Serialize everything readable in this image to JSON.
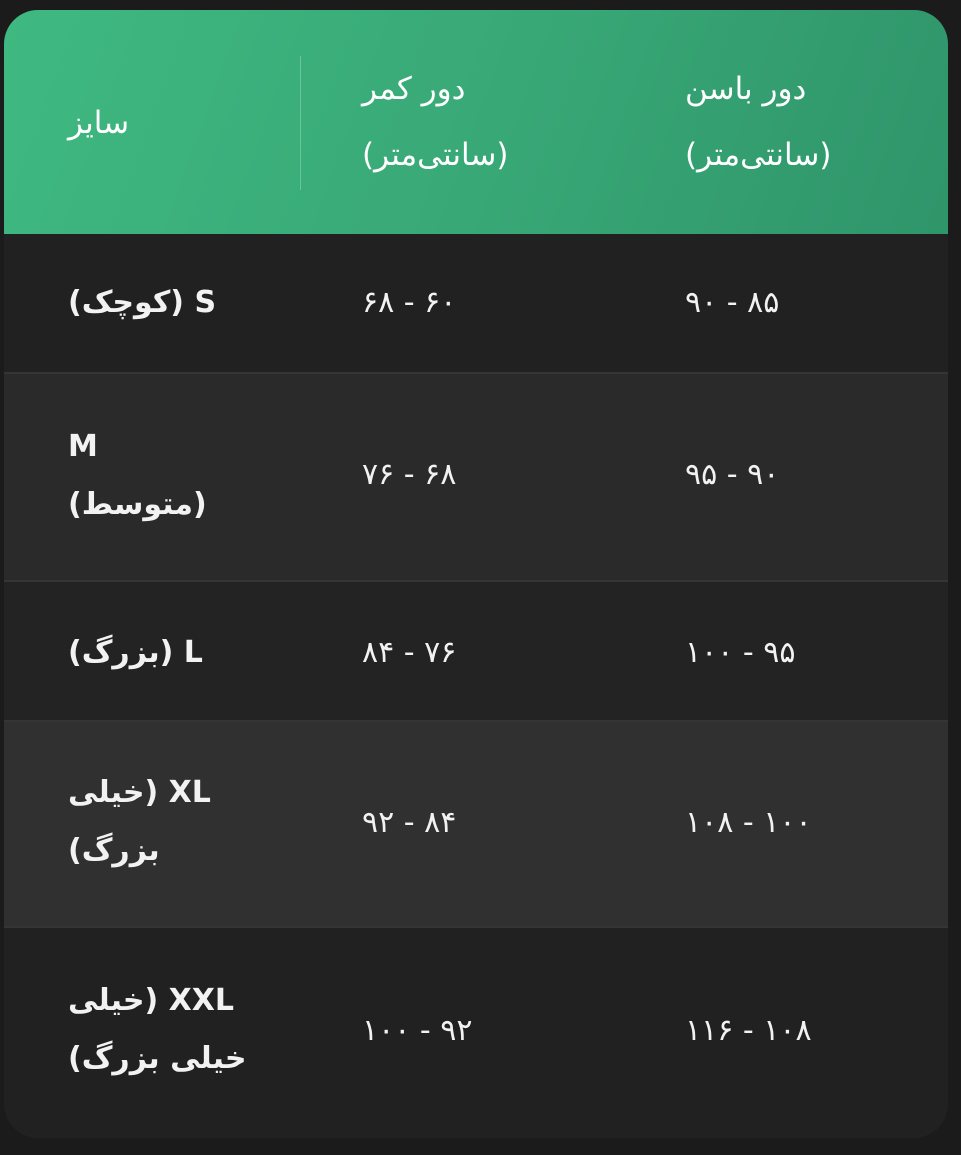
{
  "header": {
    "size": "سایز",
    "waist_line1": "دور کمر",
    "waist_line2": "(سانتی‌متر)",
    "hip_line1": "دور باسن",
    "hip_line2": "(سانتی‌متر)"
  },
  "rows": [
    {
      "size": "S (کوچک)",
      "waist": "۶۰ - ۶۸",
      "hip": "۸۵ - ۹۰"
    },
    {
      "size": "M (متوسط)",
      "waist": "۶۸ - ۷۶",
      "hip": "۹۰ - ۹۵"
    },
    {
      "size": "L (بزرگ)",
      "waist": "۷۶ - ۸۴",
      "hip": "۹۵ - ۱۰۰"
    },
    {
      "size": "XL (خیلی بزرگ)",
      "waist": "۸۴ - ۹۲",
      "hip": "۱۰۰ - ۱۰۸"
    },
    {
      "size": "XXL (خیلی خیلی بزرگ)",
      "waist": "۹۲ - ۱۰۰",
      "hip": "۱۰۸ - ۱۱۶"
    }
  ],
  "colors": {
    "header": "#3aaf7b",
    "row": "#212121",
    "row_alt": "#2c2c2c"
  }
}
